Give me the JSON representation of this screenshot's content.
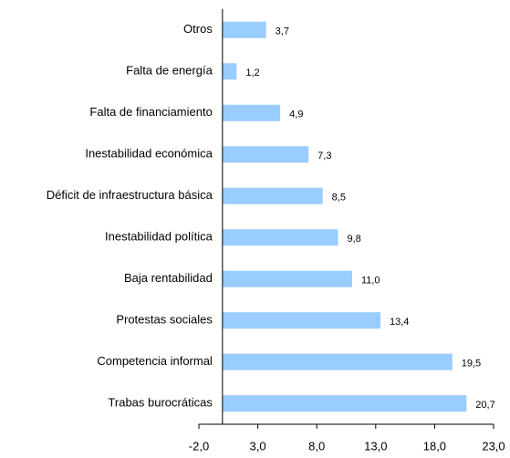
{
  "chart_data": {
    "type": "barh",
    "categories": [
      "Otros",
      "Falta de energía",
      "Falta de financiamiento",
      "Inestabilidad económica",
      "Déficit de infraestructura básica",
      "Inestabilidad política",
      "Baja rentabilidad",
      "Protestas sociales",
      "Competencia informal",
      "Trabas burocráticas"
    ],
    "values": [
      3.7,
      1.2,
      4.9,
      7.3,
      8.5,
      9.8,
      11.0,
      13.4,
      19.5,
      20.7
    ],
    "value_labels": [
      "3,7",
      "1,2",
      "4,9",
      "7,3",
      "8,5",
      "9,8",
      "11,0",
      "13,4",
      "19,5",
      "20,7"
    ],
    "color": "#99ccff",
    "xlim": [
      -2,
      23
    ],
    "xticks": [
      {
        "value": -2,
        "label": "-2,0"
      },
      {
        "value": 3,
        "label": "3,0"
      },
      {
        "value": 8,
        "label": "8,0"
      },
      {
        "value": 13,
        "label": "13,0"
      },
      {
        "value": 18,
        "label": "18,0"
      },
      {
        "value": 23,
        "label": "23,0"
      }
    ]
  }
}
